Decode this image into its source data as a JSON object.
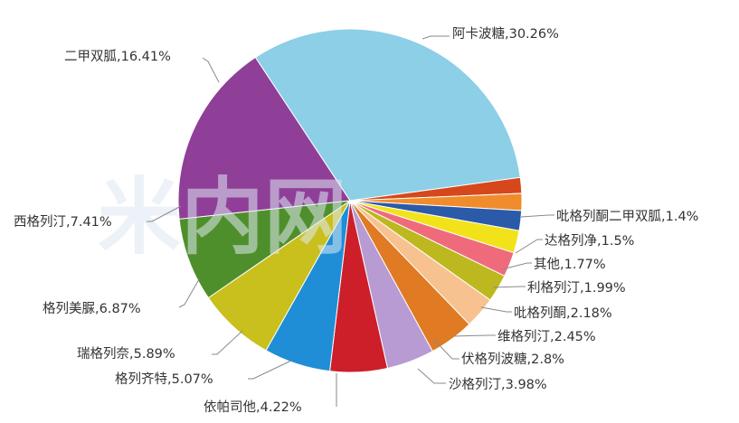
{
  "chart_data": {
    "type": "pie",
    "title": "",
    "watermark": "米内网",
    "slices": [
      {
        "label": "阿卡波糖",
        "value": 30.26,
        "display": "阿卡波糖,30.26%",
        "color": "#8ccfe6"
      },
      {
        "label": "吡格列酮二甲双胍",
        "value": 1.4,
        "display": "吡格列酮二甲双胍,1.4%",
        "color": "#d6471c"
      },
      {
        "label": "达格列净",
        "value": 1.5,
        "display": "达格列净,1.5%",
        "color": "#f08c2c"
      },
      {
        "label": "其他",
        "value": 1.77,
        "display": "其他,1.77%",
        "color": "#2a5aa8"
      },
      {
        "label": "利格列汀",
        "value": 1.99,
        "display": "利格列汀,1.99%",
        "color": "#f2e21a"
      },
      {
        "label": "吡格列酮",
        "value": 2.18,
        "display": "吡格列酮,2.18%",
        "color": "#ef6b7b"
      },
      {
        "label": "维格列汀",
        "value": 2.45,
        "display": "维格列汀,2.45%",
        "color": "#bdb81f"
      },
      {
        "label": "伏格列波糖",
        "value": 2.8,
        "display": "伏格列波糖,2.8%",
        "color": "#f7c28f"
      },
      {
        "label": "沙格列汀",
        "value": 3.98,
        "display": "沙格列汀,3.98%",
        "color": "#e07a23"
      },
      {
        "label": "依帕司他",
        "value": 4.22,
        "display": "依帕司他,4.22%",
        "color": "#b79bd2"
      },
      {
        "label": "格列齐特",
        "value": 5.07,
        "display": "格列齐特,5.07%",
        "color": "#cc1f2a"
      },
      {
        "label": "瑞格列奈",
        "value": 5.89,
        "display": "瑞格列奈,5.89%",
        "color": "#1f8ed6"
      },
      {
        "label": "格列美脲",
        "value": 6.87,
        "display": "格列美脲,6.87%",
        "color": "#c9bf1d"
      },
      {
        "label": "西格列汀",
        "value": 7.41,
        "display": "西格列汀,7.41%",
        "color": "#4f8f2b"
      },
      {
        "label": "二甲双胍",
        "value": 16.41,
        "display": "二甲双胍,16.41%",
        "color": "#8f3f98"
      }
    ]
  },
  "labels": [
    {
      "text": "阿卡波糖,30.26%"
    },
    {
      "text": "二甲双胍,16.41%"
    },
    {
      "text": "西格列汀,7.41%"
    },
    {
      "text": "格列美脲,6.87%"
    },
    {
      "text": "瑞格列奈,5.89%"
    },
    {
      "text": "格列齐特,5.07%"
    },
    {
      "text": "依帕司他,4.22%"
    },
    {
      "text": "沙格列汀,3.98%"
    },
    {
      "text": "伏格列波糖,2.8%"
    },
    {
      "text": "维格列汀,2.45%"
    },
    {
      "text": "吡格列酮,2.18%"
    },
    {
      "text": "利格列汀,1.99%"
    },
    {
      "text": "其他,1.77%"
    },
    {
      "text": "达格列净,1.5%"
    },
    {
      "text": "吡格列酮二甲双胍,1.4%"
    }
  ]
}
